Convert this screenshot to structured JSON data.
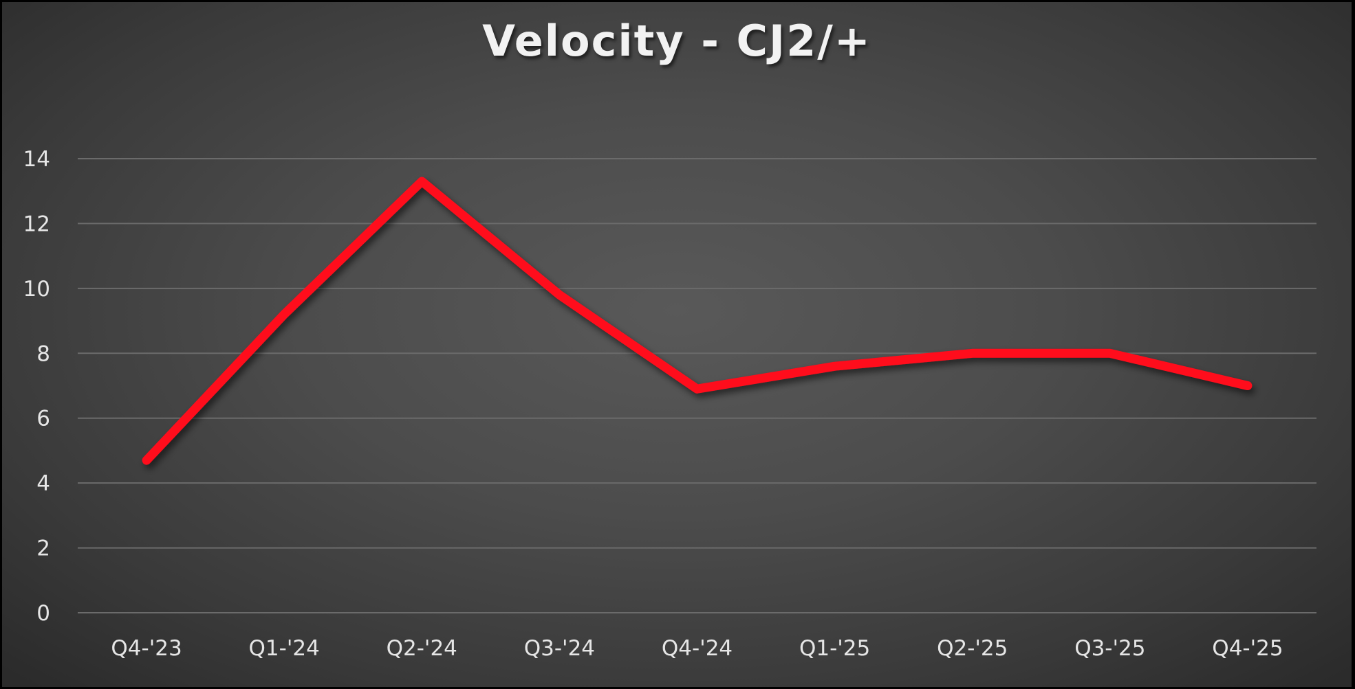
{
  "chart_data": {
    "type": "line",
    "title": "Velocity - CJ2/+",
    "xlabel": "",
    "ylabel": "",
    "categories": [
      "Q4-'23",
      "Q1-'24",
      "Q2-'24",
      "Q3-'24",
      "Q4-'24",
      "Q1-'25",
      "Q2-'25",
      "Q3-'25",
      "Q4-'25"
    ],
    "series": [
      {
        "name": "Velocity",
        "color": "#ff0a1a",
        "values": [
          4.7,
          9.2,
          13.3,
          9.8,
          6.9,
          7.6,
          8.0,
          8.0,
          7.0
        ]
      }
    ],
    "yticks": [
      0,
      2,
      4,
      6,
      8,
      10,
      12,
      14
    ],
    "ylim": [
      0,
      14
    ],
    "grid": true,
    "legend": "none"
  },
  "style": {
    "line_color": "#ff0a1a",
    "grid_color": "#6b6b6b",
    "text_color": "#e6e6e6"
  }
}
